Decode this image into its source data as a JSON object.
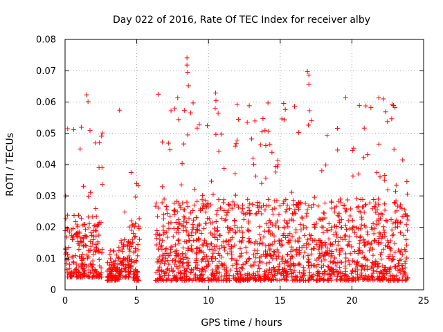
{
  "chart_data": {
    "type": "scatter",
    "title": "Day 022 of 2016, Rate Of TEC Index for receiver alby",
    "xlabel": "GPS time / hours",
    "ylabel": "ROTI / TECUs",
    "xlim": [
      0,
      25
    ],
    "ylim": [
      0,
      0.08
    ],
    "xticks": [
      0,
      5,
      10,
      15,
      20,
      25
    ],
    "yticks": [
      0,
      0.01,
      0.02,
      0.03,
      0.04,
      0.05,
      0.06,
      0.07,
      0.08
    ],
    "xtick_labels": [
      "0",
      "5",
      "10",
      "15",
      "20",
      "25"
    ],
    "ytick_labels": [
      "0",
      "0.01",
      "0.02",
      "0.03",
      "0.04",
      "0.05",
      "0.06",
      "0.07",
      "0.08"
    ],
    "grid": true,
    "marker": "+",
    "color": "#ff0000",
    "segments": [
      {
        "start": 0.0,
        "end": 2.6,
        "base": 0.004,
        "spread": 0.02,
        "peak": 0.062
      },
      {
        "start": 2.9,
        "end": 3.8,
        "base": 0.003,
        "spread": 0.006,
        "peak": 0.014
      },
      {
        "start": 3.7,
        "end": 4.6,
        "base": 0.004,
        "spread": 0.012,
        "peak": 0.028
      },
      {
        "start": 4.6,
        "end": 5.2,
        "base": 0.003,
        "spread": 0.02,
        "peak": 0.042
      },
      {
        "start": 6.3,
        "end": 23.9,
        "base": 0.003,
        "spread": 0.026,
        "peak": 0.07
      }
    ],
    "highlights": [
      {
        "x": 0.6,
        "y": 0.0512
      },
      {
        "x": 1.5,
        "y": 0.0623
      },
      {
        "x": 1.6,
        "y": 0.0601
      },
      {
        "x": 2.4,
        "y": 0.047
      },
      {
        "x": 3.8,
        "y": 0.0574
      },
      {
        "x": 6.5,
        "y": 0.0625
      },
      {
        "x": 8.5,
        "y": 0.0741
      },
      {
        "x": 8.5,
        "y": 0.0718
      },
      {
        "x": 8.55,
        "y": 0.0695
      },
      {
        "x": 8.6,
        "y": 0.0652
      },
      {
        "x": 10.5,
        "y": 0.0629
      },
      {
        "x": 12.7,
        "y": 0.0535
      },
      {
        "x": 13.8,
        "y": 0.0547
      },
      {
        "x": 16.0,
        "y": 0.0586
      },
      {
        "x": 16.9,
        "y": 0.0697
      },
      {
        "x": 17.0,
        "y": 0.0686
      },
      {
        "x": 17.0,
        "y": 0.0656
      },
      {
        "x": 22.2,
        "y": 0.061
      },
      {
        "x": 22.8,
        "y": 0.0592
      },
      {
        "x": 22.9,
        "y": 0.0589
      }
    ]
  }
}
